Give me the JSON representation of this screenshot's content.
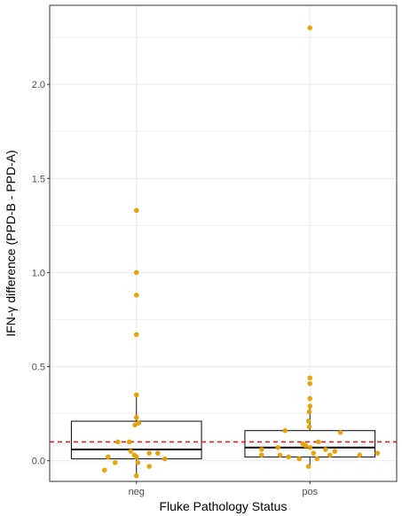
{
  "chart_data": {
    "type": "box",
    "title": "",
    "xlabel": "Fluke Pathology Status",
    "ylabel": "IFN-γ difference (PPD-B - PPD-A)",
    "categories": [
      "neg",
      "pos"
    ],
    "ylim": [
      -0.11,
      2.42
    ],
    "yticks": [
      0.0,
      0.5,
      1.0,
      1.5,
      2.0
    ],
    "ytick_labels": [
      "0.0",
      "0.5",
      "1.0",
      "1.5",
      "2.0"
    ],
    "grid": true,
    "reference_line": {
      "value": 0.1,
      "style": "dashed",
      "color": "#e31a1c"
    },
    "colors": {
      "points": "#e69f00",
      "box": "#1a1a1a",
      "grid": "#ebebeb",
      "panel_border": "#333333"
    },
    "boxes": [
      {
        "category": "neg",
        "q1": 0.01,
        "median": 0.06,
        "q3": 0.21,
        "whisker_low": -0.08,
        "whisker_high": 0.35
      },
      {
        "category": "pos",
        "q1": 0.02,
        "median": 0.07,
        "q3": 0.16,
        "whisker_low": -0.03,
        "whisker_high": 0.29
      }
    ],
    "series": [
      {
        "category": "neg",
        "points": [
          {
            "jitter": 0.0,
            "y": 1.33
          },
          {
            "jitter": 0.0,
            "y": 1.0
          },
          {
            "jitter": 0.0,
            "y": 0.88
          },
          {
            "jitter": 0.0,
            "y": 0.67
          },
          {
            "jitter": 0.0,
            "y": 0.35
          },
          {
            "jitter": 0.0,
            "y": 0.23
          },
          {
            "jitter": 0.03,
            "y": 0.2
          },
          {
            "jitter": -0.02,
            "y": 0.19
          },
          {
            "jitter": -0.26,
            "y": 0.1
          },
          {
            "jitter": -0.1,
            "y": 0.1
          },
          {
            "jitter": 0.3,
            "y": 0.04
          },
          {
            "jitter": 0.18,
            "y": 0.04
          },
          {
            "jitter": -0.08,
            "y": 0.05
          },
          {
            "jitter": -0.03,
            "y": 0.03
          },
          {
            "jitter": 0.0,
            "y": 0.02
          },
          {
            "jitter": -0.4,
            "y": 0.02
          },
          {
            "jitter": 0.4,
            "y": 0.01
          },
          {
            "jitter": 0.02,
            "y": -0.01
          },
          {
            "jitter": -0.3,
            "y": -0.01
          },
          {
            "jitter": 0.18,
            "y": -0.03
          },
          {
            "jitter": -0.45,
            "y": -0.05
          },
          {
            "jitter": 0.0,
            "y": -0.08
          }
        ]
      },
      {
        "category": "pos",
        "points": [
          {
            "jitter": 0.0,
            "y": 2.3
          },
          {
            "jitter": 0.0,
            "y": 0.44
          },
          {
            "jitter": 0.0,
            "y": 0.41
          },
          {
            "jitter": 0.0,
            "y": 0.33
          },
          {
            "jitter": 0.0,
            "y": 0.29
          },
          {
            "jitter": -0.01,
            "y": 0.26
          },
          {
            "jitter": -0.02,
            "y": 0.21
          },
          {
            "jitter": -0.01,
            "y": 0.18
          },
          {
            "jitter": -0.35,
            "y": 0.16
          },
          {
            "jitter": 0.43,
            "y": 0.15
          },
          {
            "jitter": 0.12,
            "y": 0.1
          },
          {
            "jitter": -0.1,
            "y": 0.09
          },
          {
            "jitter": -0.06,
            "y": 0.08
          },
          {
            "jitter": 0.0,
            "y": 0.07
          },
          {
            "jitter": -0.45,
            "y": 0.07
          },
          {
            "jitter": 0.22,
            "y": 0.06
          },
          {
            "jitter": -0.68,
            "y": 0.06
          },
          {
            "jitter": 0.35,
            "y": 0.05
          },
          {
            "jitter": 0.05,
            "y": 0.04
          },
          {
            "jitter": -0.42,
            "y": 0.03
          },
          {
            "jitter": -0.68,
            "y": 0.03
          },
          {
            "jitter": 0.28,
            "y": 0.03
          },
          {
            "jitter": 0.7,
            "y": 0.03
          },
          {
            "jitter": 0.95,
            "y": 0.04
          },
          {
            "jitter": -0.3,
            "y": 0.02
          },
          {
            "jitter": -0.15,
            "y": 0.01
          },
          {
            "jitter": 0.1,
            "y": 0.01
          },
          {
            "jitter": -0.02,
            "y": -0.03
          }
        ]
      }
    ]
  }
}
